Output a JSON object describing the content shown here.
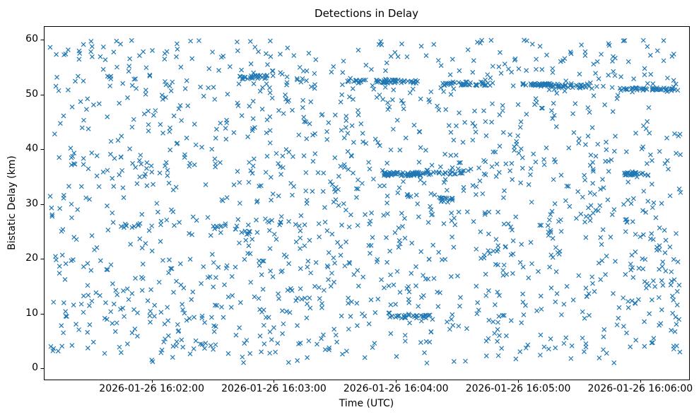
{
  "figure": {
    "title": "Detections in Delay",
    "xlabel": "Time (UTC)",
    "ylabel": "Bistatic Delay (km)"
  },
  "chart_data": {
    "type": "scatter",
    "title": "Detections in Delay",
    "xlabel": "Time (UTC)",
    "ylabel": "Bistatic Delay (km)",
    "marker": "x",
    "marker_color": "#1f77b4",
    "marker_size_px": 3,
    "legend": "none",
    "axes": {
      "xlim_seconds_after_16_00": [
        67,
        384
      ],
      "ylim": [
        -2,
        62.5
      ],
      "x_tick_interval": "1 minute",
      "x_ticks": [
        {
          "seconds": 120,
          "label": "2026-01-26 16:02:00"
        },
        {
          "seconds": 180,
          "label": "2026-01-26 16:03:00"
        },
        {
          "seconds": 240,
          "label": "2026-01-26 16:04:00"
        },
        {
          "seconds": 300,
          "label": "2026-01-26 16:05:00"
        },
        {
          "seconds": 360,
          "label": "2026-01-26 16:06:00"
        }
      ],
      "y_ticks": [
        0,
        10,
        20,
        30,
        40,
        50,
        60
      ],
      "grid": false
    },
    "scatter": {
      "description": "Dense cloud of detection markers spread roughly uniformly between delay 1 and 60 km over 16:01:10 to 16:06:20 UTC, with several dense horizontal target-track streaks.",
      "background_noise": {
        "count": 1500,
        "t_range_seconds_after_16_00": [
          70,
          380
        ],
        "y_range_km": [
          1.0,
          60.0
        ],
        "distribution": "uniform",
        "seed": 20260126
      },
      "tracks": [
        {
          "y": 53.2,
          "t_range": [
            163,
            177
          ],
          "count": 26,
          "y_jitter": 0.35
        },
        {
          "y": 52.4,
          "t_range": [
            216,
            251
          ],
          "count": 55,
          "y_jitter": 0.3
        },
        {
          "y": 52.0,
          "t_range": [
            263,
            289
          ],
          "count": 38,
          "y_jitter": 0.35
        },
        {
          "y": 51.8,
          "t_range": [
            301,
            320
          ],
          "count": 42,
          "y_jitter": 0.3
        },
        {
          "y": 51.5,
          "t_range": [
            320,
            335
          ],
          "count": 26,
          "y_jitter": 0.3
        },
        {
          "y": 51.0,
          "t_range": [
            350,
            380
          ],
          "count": 48,
          "y_jitter": 0.3
        },
        {
          "y": 35.5,
          "t_range": [
            234,
            255
          ],
          "count": 60,
          "y_jitter": 0.35
        },
        {
          "y": 35.8,
          "t_range": [
            255,
            277
          ],
          "count": 22,
          "y_jitter": 0.4
        },
        {
          "y": 35.5,
          "t_range": [
            352,
            364
          ],
          "count": 24,
          "y_jitter": 0.3
        },
        {
          "y": 9.5,
          "t_range": [
            237,
            257
          ],
          "count": 30,
          "y_jitter": 0.3
        },
        {
          "y": 31.0,
          "t_range": [
            261,
            268
          ],
          "count": 14,
          "y_jitter": 0.5
        },
        {
          "y": 25.8,
          "t_range": [
            150,
            163
          ],
          "count": 10,
          "y_jitter": 0.4
        },
        {
          "y": 26.1,
          "t_range": [
            104,
            117
          ],
          "count": 10,
          "y_jitter": 0.4
        }
      ]
    }
  }
}
